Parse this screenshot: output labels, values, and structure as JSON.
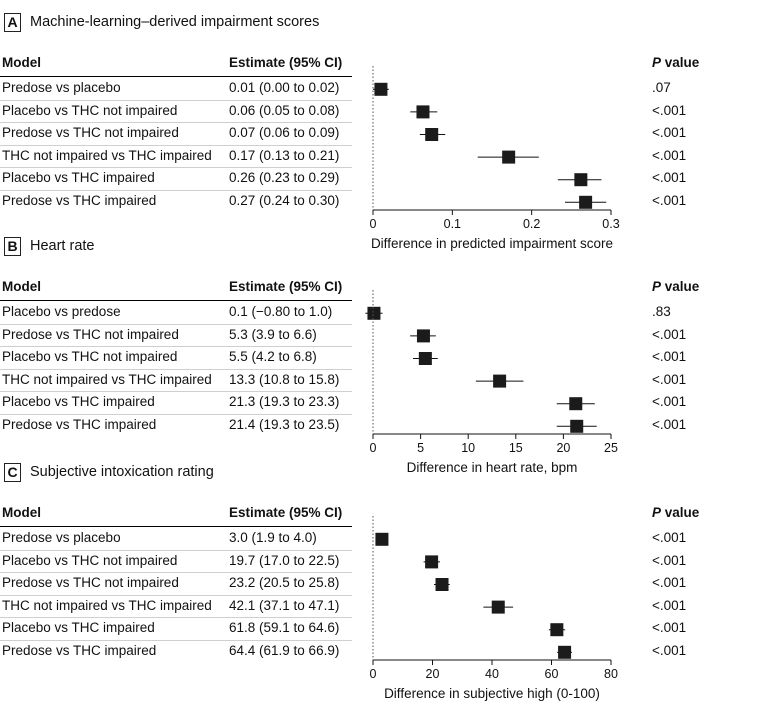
{
  "chart_data": [
    {
      "type": "forest",
      "letter": "A",
      "title": "Machine-learning–derived impairment scores",
      "columns": {
        "model": "Model",
        "estimate": "Estimate (95% CI)",
        "p_italic": "P",
        "p_rest": " value"
      },
      "xlabel": "Difference in predicted impairment score",
      "xlim": [
        0,
        0.3
      ],
      "xticks": [
        0,
        0.1,
        0.2,
        0.3
      ],
      "xtick_labels": [
        "0",
        "0.1",
        "0.2",
        "0.3"
      ],
      "rows": [
        {
          "model": "Predose vs placebo",
          "estimate_text": "0.01 (0.00 to 0.02)",
          "est": 0.01,
          "lo": 0.0,
          "hi": 0.02,
          "p": ".07"
        },
        {
          "model": "Placebo vs THC not impaired",
          "estimate_text": "0.06 (0.05 to 0.08)",
          "est": 0.063,
          "lo": 0.047,
          "hi": 0.081,
          "p": "<.001"
        },
        {
          "model": "Predose vs THC not impaired",
          "estimate_text": "0.07 (0.06 to 0.09)",
          "est": 0.074,
          "lo": 0.059,
          "hi": 0.091,
          "p": "<.001"
        },
        {
          "model": "THC not impaired vs THC impaired",
          "estimate_text": "0.17 (0.13 to 0.21)",
          "est": 0.171,
          "lo": 0.132,
          "hi": 0.209,
          "p": "<.001"
        },
        {
          "model": "Placebo vs THC impaired",
          "estimate_text": "0.26 (0.23 to 0.29)",
          "est": 0.262,
          "lo": 0.233,
          "hi": 0.288,
          "p": "<.001"
        },
        {
          "model": "Predose vs THC impaired",
          "estimate_text": "0.27 (0.24 to 0.30)",
          "est": 0.268,
          "lo": 0.242,
          "hi": 0.294,
          "p": "<.001"
        }
      ]
    },
    {
      "type": "forest",
      "letter": "B",
      "title": "Heart rate",
      "columns": {
        "model": "Model",
        "estimate": "Estimate (95% CI)",
        "p_italic": "P",
        "p_rest": " value"
      },
      "xlabel": "Difference in heart rate, bpm",
      "xlim": [
        0,
        25
      ],
      "xticks": [
        0,
        5,
        10,
        15,
        20,
        25
      ],
      "xtick_labels": [
        "0",
        "5",
        "10",
        "15",
        "20",
        "25"
      ],
      "rows": [
        {
          "model": "Placebo vs predose",
          "estimate_text": "0.1 (−0.80 to 1.0)",
          "est": 0.1,
          "lo": -0.8,
          "hi": 1.0,
          "p": ".83"
        },
        {
          "model": "Predose vs THC not impaired",
          "estimate_text": "5.3 (3.9 to 6.6)",
          "est": 5.3,
          "lo": 3.9,
          "hi": 6.6,
          "p": "<.001"
        },
        {
          "model": "Placebo vs THC not impaired",
          "estimate_text": "5.5 (4.2 to 6.8)",
          "est": 5.5,
          "lo": 4.2,
          "hi": 6.8,
          "p": "<.001"
        },
        {
          "model": "THC not impaired vs THC impaired",
          "estimate_text": "13.3 (10.8 to 15.8)",
          "est": 13.3,
          "lo": 10.8,
          "hi": 15.8,
          "p": "<.001"
        },
        {
          "model": "Placebo vs THC impaired",
          "estimate_text": "21.3 (19.3 to 23.3)",
          "est": 21.3,
          "lo": 19.3,
          "hi": 23.3,
          "p": "<.001"
        },
        {
          "model": "Predose vs THC impaired",
          "estimate_text": "21.4 (19.3 to 23.5)",
          "est": 21.4,
          "lo": 19.3,
          "hi": 23.5,
          "p": "<.001"
        }
      ]
    },
    {
      "type": "forest",
      "letter": "C",
      "title": "Subjective intoxication rating",
      "columns": {
        "model": "Model",
        "estimate": "Estimate (95% CI)",
        "p_italic": "P",
        "p_rest": " value"
      },
      "xlabel": "Difference in subjective high (0-100)",
      "xlim": [
        0,
        80
      ],
      "xticks": [
        0,
        20,
        40,
        60,
        80
      ],
      "xtick_labels": [
        "0",
        "20",
        "40",
        "60",
        "80"
      ],
      "rows": [
        {
          "model": "Predose vs placebo",
          "estimate_text": "3.0 (1.9 to 4.0)",
          "est": 3.0,
          "lo": 1.9,
          "hi": 4.0,
          "p": "<.001"
        },
        {
          "model": "Placebo vs THC not impaired",
          "estimate_text": "19.7 (17.0 to 22.5)",
          "est": 19.7,
          "lo": 17.0,
          "hi": 22.5,
          "p": "<.001"
        },
        {
          "model": "Predose vs THC not impaired",
          "estimate_text": "23.2 (20.5 to 25.8)",
          "est": 23.2,
          "lo": 20.5,
          "hi": 25.8,
          "p": "<.001"
        },
        {
          "model": "THC not impaired vs THC impaired",
          "estimate_text": "42.1 (37.1 to 47.1)",
          "est": 42.1,
          "lo": 37.1,
          "hi": 47.1,
          "p": "<.001"
        },
        {
          "model": "Placebo vs THC impaired",
          "estimate_text": "61.8 (59.1 to 64.6)",
          "est": 61.8,
          "lo": 59.1,
          "hi": 64.6,
          "p": "<.001"
        },
        {
          "model": "Predose vs THC impaired",
          "estimate_text": "64.4 (61.9 to 66.9)",
          "est": 64.4,
          "lo": 61.9,
          "hi": 66.9,
          "p": "<.001"
        }
      ]
    }
  ]
}
